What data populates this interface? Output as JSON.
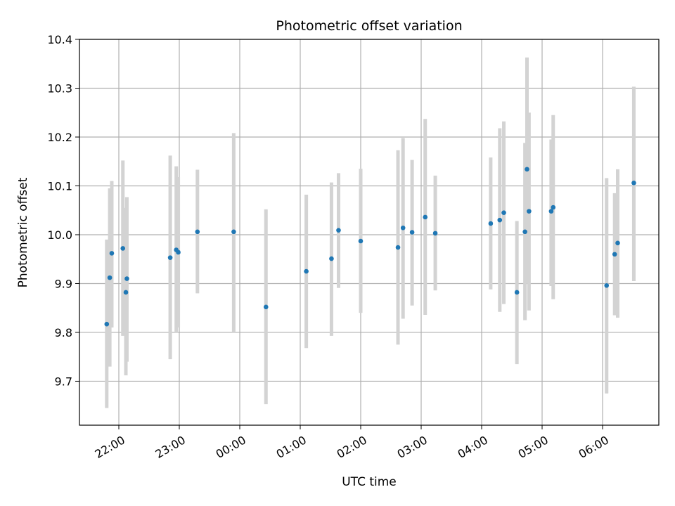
{
  "chart_data": {
    "type": "scatter",
    "title": "Photometric offset variation",
    "xlabel": "UTC time",
    "ylabel": "Photometric offset",
    "x_ticks": [
      "22:00",
      "23:00",
      "00:00",
      "01:00",
      "02:00",
      "03:00",
      "04:00",
      "05:00",
      "06:00"
    ],
    "y_ticks": [
      "9.7",
      "9.8",
      "9.9",
      "10.0",
      "10.1",
      "10.2",
      "10.3",
      "10.4"
    ],
    "ylim": [
      9.61,
      10.4
    ],
    "grid": true,
    "colors": {
      "point": "#1f77b4",
      "errorbar": "#d3d3d3",
      "grid": "#b0b0b0"
    },
    "series": [
      {
        "points": [
          {
            "t": "21:48",
            "y": 9.817,
            "lo": 9.645,
            "hi": 9.99
          },
          {
            "t": "21:51",
            "y": 9.912,
            "lo": 9.73,
            "hi": 10.095
          },
          {
            "t": "21:53",
            "y": 9.962,
            "lo": 9.81,
            "hi": 10.11
          },
          {
            "t": "22:04",
            "y": 9.972,
            "lo": 9.793,
            "hi": 10.152
          },
          {
            "t": "22:07",
            "y": 9.882,
            "lo": 9.712,
            "hi": 10.055
          },
          {
            "t": "22:08",
            "y": 9.91,
            "lo": 9.74,
            "hi": 10.077
          },
          {
            "t": "22:51",
            "y": 9.953,
            "lo": 9.745,
            "hi": 10.162
          },
          {
            "t": "22:57",
            "y": 9.969,
            "lo": 9.8,
            "hi": 10.14
          },
          {
            "t": "22:59",
            "y": 9.964,
            "lo": 9.81,
            "hi": 10.118
          },
          {
            "t": "23:18",
            "y": 10.006,
            "lo": 9.88,
            "hi": 10.133
          },
          {
            "t": "23:54",
            "y": 10.006,
            "lo": 9.8,
            "hi": 10.208
          },
          {
            "t": "00:26",
            "y": 9.852,
            "lo": 9.653,
            "hi": 10.052
          },
          {
            "t": "01:06",
            "y": 9.925,
            "lo": 9.768,
            "hi": 10.082
          },
          {
            "t": "01:31",
            "y": 9.951,
            "lo": 9.793,
            "hi": 10.107
          },
          {
            "t": "01:38",
            "y": 10.009,
            "lo": 9.891,
            "hi": 10.126
          },
          {
            "t": "02:00",
            "y": 9.987,
            "lo": 9.84,
            "hi": 10.135
          },
          {
            "t": "02:37",
            "y": 9.974,
            "lo": 9.775,
            "hi": 10.173
          },
          {
            "t": "02:42",
            "y": 10.014,
            "lo": 9.828,
            "hi": 10.198
          },
          {
            "t": "02:51",
            "y": 10.005,
            "lo": 9.855,
            "hi": 10.153
          },
          {
            "t": "03:04",
            "y": 10.036,
            "lo": 9.836,
            "hi": 10.237
          },
          {
            "t": "03:14",
            "y": 10.003,
            "lo": 9.886,
            "hi": 10.121
          },
          {
            "t": "04:09",
            "y": 10.023,
            "lo": 9.888,
            "hi": 10.158
          },
          {
            "t": "04:18",
            "y": 10.03,
            "lo": 9.842,
            "hi": 10.218
          },
          {
            "t": "04:22",
            "y": 10.045,
            "lo": 9.858,
            "hi": 10.232
          },
          {
            "t": "04:35",
            "y": 9.882,
            "lo": 9.735,
            "hi": 10.028
          },
          {
            "t": "04:43",
            "y": 10.006,
            "lo": 9.825,
            "hi": 10.188
          },
          {
            "t": "04:45",
            "y": 10.134,
            "lo": 9.9,
            "hi": 10.363
          },
          {
            "t": "04:47",
            "y": 10.048,
            "lo": 9.845,
            "hi": 10.25
          },
          {
            "t": "05:09",
            "y": 10.048,
            "lo": 9.895,
            "hi": 10.195
          },
          {
            "t": "05:11",
            "y": 10.056,
            "lo": 9.868,
            "hi": 10.245
          },
          {
            "t": "06:04",
            "y": 9.896,
            "lo": 9.675,
            "hi": 10.116
          },
          {
            "t": "06:12",
            "y": 9.96,
            "lo": 9.835,
            "hi": 10.085
          },
          {
            "t": "06:15",
            "y": 9.983,
            "lo": 9.83,
            "hi": 10.134
          },
          {
            "t": "06:31",
            "y": 10.106,
            "lo": 9.905,
            "hi": 10.303
          }
        ]
      }
    ]
  }
}
